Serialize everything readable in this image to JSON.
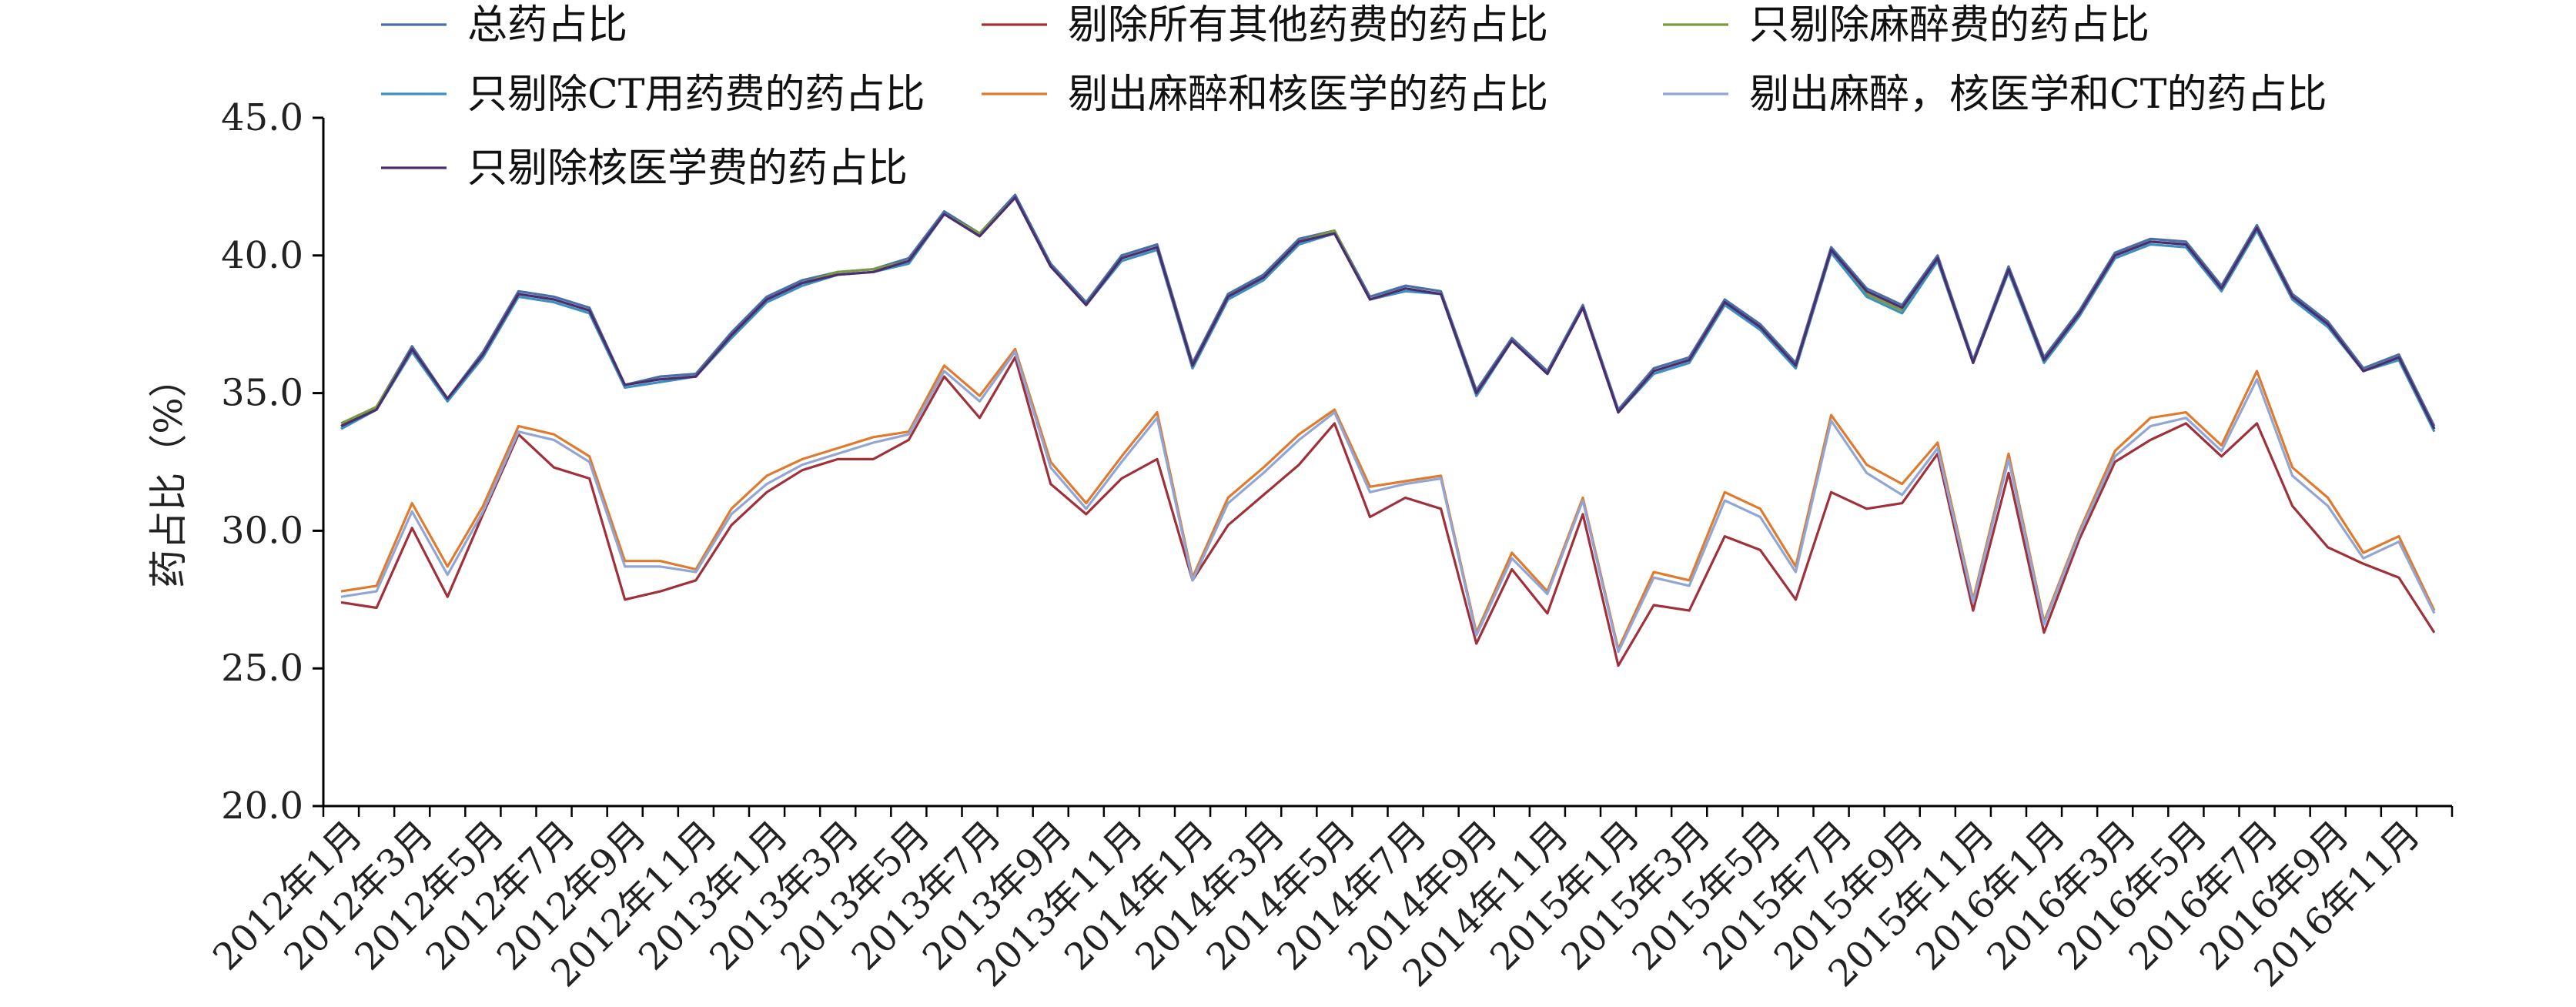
{
  "chart_data": {
    "type": "line",
    "ylabel": "药占比（%）",
    "ylim": [
      20,
      45
    ],
    "yticks": [
      "20.0",
      "25.0",
      "30.0",
      "35.0",
      "40.0",
      "45.0"
    ],
    "legend_position": "top",
    "x": [
      "2012年1月",
      "2012年2月",
      "2012年3月",
      "2012年4月",
      "2012年5月",
      "2012年6月",
      "2012年7月",
      "2012年8月",
      "2012年9月",
      "2012年10月",
      "2012年11月",
      "2012年12月",
      "2013年1月",
      "2013年2月",
      "2013年3月",
      "2013年4月",
      "2013年5月",
      "2013年6月",
      "2013年7月",
      "2013年8月",
      "2013年9月",
      "2013年10月",
      "2013年11月",
      "2013年12月",
      "2014年1月",
      "2014年2月",
      "2014年3月",
      "2014年4月",
      "2014年5月",
      "2014年6月",
      "2014年7月",
      "2014年8月",
      "2014年9月",
      "2014年10月",
      "2014年11月",
      "2014年12月",
      "2015年1月",
      "2015年2月",
      "2015年3月",
      "2015年4月",
      "2015年5月",
      "2015年6月",
      "2015年7月",
      "2015年8月",
      "2015年9月",
      "2015年10月",
      "2015年11月",
      "2015年12月",
      "2016年1月",
      "2016年2月",
      "2016年3月",
      "2016年4月",
      "2016年5月",
      "2016年6月",
      "2016年7月",
      "2016年8月",
      "2016年9月",
      "2016年10月",
      "2016年11月",
      "2016年12月"
    ],
    "xtick_labels": [
      "2012年1月",
      "2012年3月",
      "2012年5月",
      "2012年7月",
      "2012年9月",
      "2012年11月",
      "2013年1月",
      "2013年3月",
      "2013年5月",
      "2013年7月",
      "2013年9月",
      "2013年11月",
      "2014年1月",
      "2014年3月",
      "2014年5月",
      "2014年7月",
      "2014年9月",
      "2014年11月",
      "2015年1月",
      "2015年3月",
      "2015年5月",
      "2015年7月",
      "2015年9月",
      "2015年11月",
      "2016年1月",
      "2016年3月",
      "2016年5月",
      "2016年7月",
      "2016年9月",
      "2016年11月"
    ],
    "series": [
      {
        "name": "总药占比",
        "color": "#4a6ea8",
        "values": [
          33.8,
          34.5,
          36.7,
          34.8,
          36.5,
          38.7,
          38.5,
          38.1,
          35.3,
          35.6,
          35.7,
          37.2,
          38.5,
          39.1,
          39.4,
          39.5,
          39.9,
          41.6,
          40.8,
          42.2,
          39.7,
          38.3,
          40.0,
          40.4,
          36.1,
          38.6,
          39.3,
          40.6,
          40.9,
          38.5,
          38.9,
          38.7,
          35.1,
          37.0,
          35.8,
          38.2,
          34.4,
          35.9,
          36.3,
          38.4,
          37.5,
          36.1,
          40.3,
          38.8,
          38.2,
          40.0,
          36.2,
          39.6,
          36.3,
          38.0,
          40.1,
          40.6,
          40.5,
          38.9,
          41.1,
          38.6,
          37.6,
          35.9,
          36.4,
          33.8
        ]
      },
      {
        "name": "剔除所有其他药费的药占比",
        "color": "#a0303a",
        "values": [
          27.4,
          27.2,
          30.1,
          27.6,
          30.6,
          33.5,
          32.3,
          31.9,
          27.5,
          27.8,
          28.2,
          30.2,
          31.4,
          32.2,
          32.6,
          32.6,
          33.3,
          35.6,
          34.1,
          36.3,
          31.7,
          30.6,
          31.9,
          32.6,
          28.2,
          30.2,
          31.3,
          32.4,
          33.9,
          30.5,
          31.2,
          30.8,
          25.9,
          28.6,
          27.0,
          30.6,
          25.1,
          27.3,
          27.1,
          29.8,
          29.3,
          27.5,
          31.4,
          30.8,
          31.0,
          32.8,
          27.1,
          32.1,
          26.3,
          29.7,
          32.5,
          33.3,
          33.9,
          32.7,
          33.9,
          30.9,
          29.4,
          28.8,
          28.3,
          26.3
        ]
      },
      {
        "name": "只剔除麻醉费的药占比",
        "color": "#7a9a3e",
        "values": [
          33.9,
          34.5,
          36.6,
          34.8,
          36.4,
          38.6,
          38.4,
          38.0,
          35.3,
          35.5,
          35.6,
          37.1,
          38.4,
          39.0,
          39.4,
          39.5,
          39.8,
          41.5,
          40.8,
          42.1,
          39.6,
          38.2,
          39.9,
          40.3,
          36.0,
          38.5,
          39.2,
          40.5,
          40.9,
          38.4,
          38.8,
          38.6,
          35.0,
          36.9,
          35.7,
          38.1,
          34.3,
          35.8,
          36.2,
          38.3,
          37.4,
          36.0,
          40.2,
          38.6,
          38.0,
          39.8,
          36.1,
          39.5,
          36.2,
          37.9,
          40.0,
          40.5,
          40.4,
          38.8,
          41.0,
          38.5,
          37.5,
          35.8,
          36.3,
          33.7
        ]
      },
      {
        "name": "只剔除CT用药费的药占比",
        "color": "#3c8fc0",
        "values": [
          33.7,
          34.4,
          36.5,
          34.7,
          36.3,
          38.5,
          38.3,
          37.9,
          35.2,
          35.4,
          35.6,
          37.0,
          38.3,
          38.9,
          39.3,
          39.4,
          39.7,
          41.5,
          40.7,
          42.1,
          39.6,
          38.2,
          39.8,
          40.2,
          35.9,
          38.4,
          39.1,
          40.4,
          40.8,
          38.4,
          38.7,
          38.6,
          34.9,
          36.9,
          35.7,
          38.1,
          34.3,
          35.7,
          36.1,
          38.2,
          37.3,
          35.9,
          40.1,
          38.5,
          37.9,
          39.8,
          36.1,
          39.4,
          36.1,
          37.8,
          39.9,
          40.4,
          40.3,
          38.7,
          40.9,
          38.4,
          37.4,
          35.8,
          36.2,
          33.6
        ]
      },
      {
        "name": "剔出麻醉和核医学的药占比",
        "color": "#e07a2c",
        "values": [
          27.8,
          28.0,
          31.0,
          28.7,
          30.9,
          33.8,
          33.5,
          32.7,
          28.9,
          28.9,
          28.6,
          30.8,
          32.0,
          32.6,
          33.0,
          33.4,
          33.6,
          36.0,
          34.9,
          36.6,
          32.5,
          31.0,
          32.7,
          34.3,
          28.3,
          31.2,
          32.3,
          33.5,
          34.4,
          31.6,
          31.8,
          32.0,
          26.3,
          29.2,
          27.8,
          31.2,
          25.7,
          28.5,
          28.2,
          31.4,
          30.8,
          28.7,
          34.2,
          32.4,
          31.7,
          33.2,
          27.5,
          32.8,
          26.7,
          30.0,
          32.9,
          34.1,
          34.3,
          33.1,
          35.8,
          32.3,
          31.2,
          29.2,
          29.8,
          27.1
        ]
      },
      {
        "name": "剔出麻醉，核医学和CT的药占比",
        "color": "#8fa6d6",
        "values": [
          27.6,
          27.8,
          30.7,
          28.4,
          30.7,
          33.6,
          33.3,
          32.5,
          28.7,
          28.7,
          28.5,
          30.6,
          31.7,
          32.4,
          32.8,
          33.2,
          33.5,
          35.8,
          34.7,
          36.5,
          32.3,
          30.8,
          32.5,
          34.1,
          28.2,
          31.0,
          32.1,
          33.3,
          34.3,
          31.4,
          31.7,
          31.9,
          26.2,
          29.0,
          27.7,
          31.1,
          25.6,
          28.3,
          28.0,
          31.1,
          30.5,
          28.5,
          34.0,
          32.1,
          31.3,
          33.0,
          27.4,
          32.6,
          26.6,
          29.9,
          32.7,
          33.8,
          34.1,
          32.9,
          35.5,
          32.0,
          30.9,
          29.0,
          29.6,
          27.0
        ]
      },
      {
        "name": "只剔除核医学费的药占比",
        "color": "#4b2d6e",
        "values": [
          33.8,
          34.4,
          36.6,
          34.8,
          36.4,
          38.6,
          38.4,
          38.0,
          35.3,
          35.5,
          35.6,
          37.1,
          38.4,
          39.0,
          39.3,
          39.4,
          39.8,
          41.5,
          40.7,
          42.1,
          39.6,
          38.2,
          39.9,
          40.3,
          36.0,
          38.5,
          39.2,
          40.5,
          40.8,
          38.4,
          38.8,
          38.6,
          35.0,
          36.9,
          35.7,
          38.1,
          34.3,
          35.8,
          36.2,
          38.3,
          37.4,
          36.0,
          40.2,
          38.7,
          38.1,
          39.9,
          36.1,
          39.5,
          36.2,
          37.9,
          40.0,
          40.5,
          40.4,
          38.8,
          41.0,
          38.5,
          37.5,
          35.8,
          36.3,
          33.7
        ]
      }
    ]
  }
}
